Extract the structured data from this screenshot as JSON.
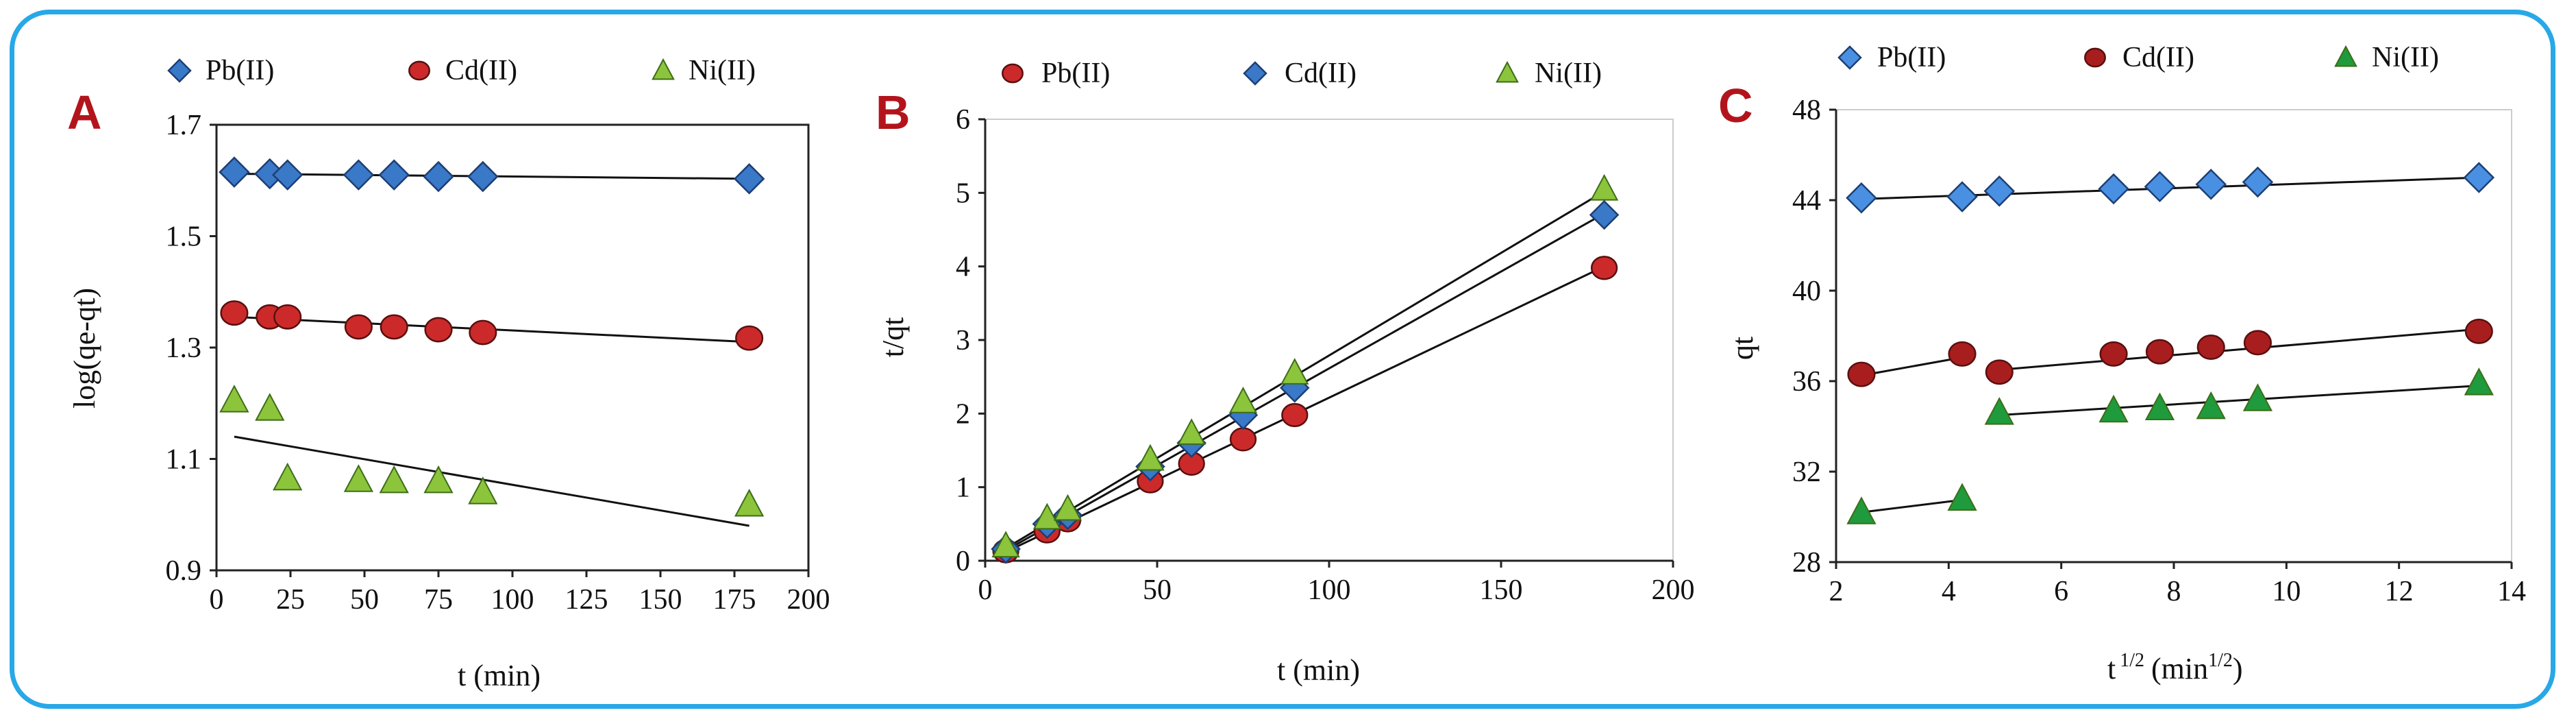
{
  "chart_data": [
    {
      "panel_label": "A",
      "type": "scatter",
      "xlabel": "t (min)",
      "ylabel": "log(qe-qt)",
      "xlim": [
        0,
        200
      ],
      "ylim": [
        0.9,
        1.7
      ],
      "xticks": [
        "0",
        "25",
        "50",
        "75",
        "100",
        "125",
        "150",
        "175",
        "200"
      ],
      "yticks": [
        "0.9",
        "1.1",
        "1.3",
        "1.5",
        "1.7"
      ],
      "series": [
        {
          "name": "Pb(II)",
          "marker": "diamond",
          "color": "#3a78c8",
          "x": [
            6,
            18,
            24,
            48,
            60,
            75,
            90,
            180
          ],
          "y": [
            1.615,
            1.612,
            1.61,
            1.61,
            1.61,
            1.607,
            1.607,
            1.603
          ],
          "fit": {
            "x": [
              6,
              180
            ],
            "y": [
              1.612,
              1.603
            ]
          }
        },
        {
          "name": "Cd(II)",
          "marker": "circle",
          "color": "#cc2a2a",
          "x": [
            6,
            18,
            24,
            48,
            60,
            75,
            90,
            180
          ],
          "y": [
            1.362,
            1.355,
            1.355,
            1.337,
            1.337,
            1.332,
            1.327,
            1.317
          ],
          "fit": {
            "x": [
              6,
              180
            ],
            "y": [
              1.355,
              1.31
            ]
          }
        },
        {
          "name": "Ni(II)",
          "marker": "triangle",
          "color": "#8cc43c",
          "x": [
            6,
            18,
            24,
            48,
            60,
            75,
            90,
            180
          ],
          "y": [
            1.205,
            1.19,
            1.065,
            1.062,
            1.06,
            1.06,
            1.04,
            1.018
          ],
          "fit": {
            "x": [
              6,
              180
            ],
            "y": [
              1.14,
              0.98
            ]
          }
        }
      ]
    },
    {
      "panel_label": "B",
      "type": "scatter",
      "xlabel": "t (min)",
      "ylabel": "t/qt",
      "xlim": [
        0,
        200
      ],
      "ylim": [
        0,
        6
      ],
      "xticks": [
        "0",
        "50",
        "100",
        "150",
        "200"
      ],
      "yticks": [
        "0",
        "1",
        "2",
        "3",
        "4",
        "5",
        "6"
      ],
      "series": [
        {
          "name": "Pb(II)",
          "marker": "circle",
          "color": "#cc2a2a",
          "x": [
            6,
            18,
            24,
            48,
            60,
            75,
            90,
            180
          ],
          "y": [
            0.13,
            0.4,
            0.55,
            1.08,
            1.32,
            1.65,
            1.98,
            3.98
          ],
          "fit": {
            "x": [
              6,
              180
            ],
            "y": [
              0.12,
              4.0
            ]
          }
        },
        {
          "name": "Cd(II)",
          "marker": "diamond",
          "color": "#3a78c8",
          "x": [
            6,
            18,
            24,
            48,
            60,
            75,
            90,
            180
          ],
          "y": [
            0.16,
            0.5,
            0.62,
            1.28,
            1.6,
            1.98,
            2.35,
            4.7
          ],
          "fit": {
            "x": [
              6,
              180
            ],
            "y": [
              0.14,
              4.72
            ]
          }
        },
        {
          "name": "Ni(II)",
          "marker": "triangle",
          "color": "#8cc43c",
          "x": [
            6,
            18,
            24,
            48,
            60,
            75,
            90,
            180
          ],
          "y": [
            0.2,
            0.58,
            0.7,
            1.38,
            1.73,
            2.16,
            2.55,
            5.05
          ],
          "fit": {
            "x": [
              6,
              180
            ],
            "y": [
              0.17,
              5.02
            ]
          }
        }
      ]
    },
    {
      "panel_label": "C",
      "type": "scatter",
      "xlabel_main": "t",
      "xlabel_exp": "1/2",
      "xlabel_unit_open": "(min",
      "xlabel_unit_exp": "1/2",
      "xlabel_unit_close": ")",
      "ylabel": "qt",
      "xlim": [
        2,
        14
      ],
      "ylim": [
        28,
        48
      ],
      "xticks": [
        "2",
        "4",
        "6",
        "8",
        "10",
        "12",
        "14"
      ],
      "yticks": [
        "28",
        "32",
        "36",
        "40",
        "44",
        "48"
      ],
      "series": [
        {
          "name": "Pb(II)",
          "marker": "diamond",
          "color": "#4a90e2",
          "x": [
            2.45,
            4.24,
            4.9,
            6.93,
            7.75,
            8.66,
            9.49,
            13.42
          ],
          "y": [
            44.1,
            44.15,
            44.4,
            44.5,
            44.6,
            44.7,
            44.8,
            45.0
          ],
          "fit": {
            "x": [
              2.45,
              13.42
            ],
            "y": [
              44.05,
              45.0
            ]
          }
        },
        {
          "name": "Cd(II)",
          "marker": "circle",
          "color": "#a81e1e",
          "x": [
            2.45,
            4.24,
            4.9,
            6.93,
            7.75,
            8.66,
            9.49,
            13.42
          ],
          "y": [
            36.3,
            37.2,
            36.4,
            37.2,
            37.3,
            37.5,
            37.7,
            38.2
          ],
          "fit": [
            {
              "x": [
                2.45,
                4.24
              ],
              "y": [
                36.25,
                37.05
              ]
            },
            {
              "x": [
                4.9,
                13.42
              ],
              "y": [
                36.5,
                38.3
              ]
            }
          ]
        },
        {
          "name": "Ni(II)",
          "marker": "triangle",
          "color": "#1f9a3c",
          "x": [
            2.45,
            4.24,
            4.9,
            6.93,
            7.75,
            8.66,
            9.49,
            13.42
          ],
          "y": [
            30.2,
            30.8,
            34.6,
            34.7,
            34.8,
            34.85,
            35.2,
            35.9
          ],
          "fit": [
            {
              "x": [
                2.45,
                4.24
              ],
              "y": [
                30.2,
                30.75
              ]
            },
            {
              "x": [
                4.9,
                13.42
              ],
              "y": [
                34.5,
                35.8
              ]
            }
          ]
        }
      ]
    }
  ]
}
